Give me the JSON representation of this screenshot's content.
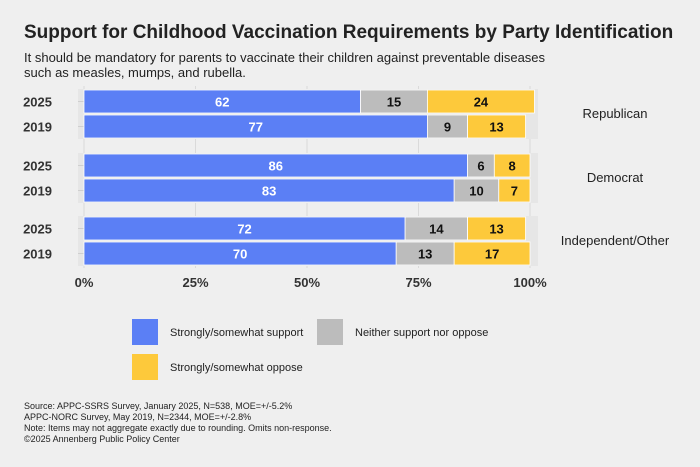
{
  "chart_data": {
    "type": "bar",
    "orientation": "horizontal",
    "stacked": true,
    "title": "Support for Childhood Vaccination Requirements by Party Identification",
    "subtitle": [
      "It should be mandatory for parents to vaccinate their children against preventable diseases",
      "such as measles, mumps, and rubella."
    ],
    "xlim": [
      0,
      100
    ],
    "x_ticks": [
      "0%",
      "25%",
      "50%",
      "75%",
      "100%"
    ],
    "series": [
      {
        "name": "Strongly/somewhat support",
        "color": "#5b7ff5",
        "label_color": "#ffffff"
      },
      {
        "name": "Neither support nor oppose",
        "color": "#bcbcbc",
        "label_color": "#111111"
      },
      {
        "name": "Strongly/somewhat oppose",
        "color": "#fdc93b",
        "label_color": "#111111"
      }
    ],
    "groups": [
      {
        "name": "Republican",
        "rows": [
          {
            "year": "2025",
            "values": [
              62,
              15,
              24
            ]
          },
          {
            "year": "2019",
            "values": [
              77,
              9,
              13
            ]
          }
        ]
      },
      {
        "name": "Democrat",
        "rows": [
          {
            "year": "2025",
            "values": [
              86,
              6,
              8
            ]
          },
          {
            "year": "2019",
            "values": [
              83,
              10,
              7
            ]
          }
        ]
      },
      {
        "name": "Independent/Other",
        "rows": [
          {
            "year": "2025",
            "values": [
              72,
              14,
              13
            ]
          },
          {
            "year": "2019",
            "values": [
              70,
              13,
              17
            ]
          }
        ]
      }
    ],
    "source": [
      "Source: APPC-SSRS Survey, January 2025, N=538, MOE=+/-5.2%",
      "APPC-NORC Survey, May 2019, N=2344, MOE=+/-2.8%",
      "Note: Items may not aggregate exactly due to rounding. Omits non-response.",
      "©2025 Annenberg Public Policy Center"
    ]
  }
}
